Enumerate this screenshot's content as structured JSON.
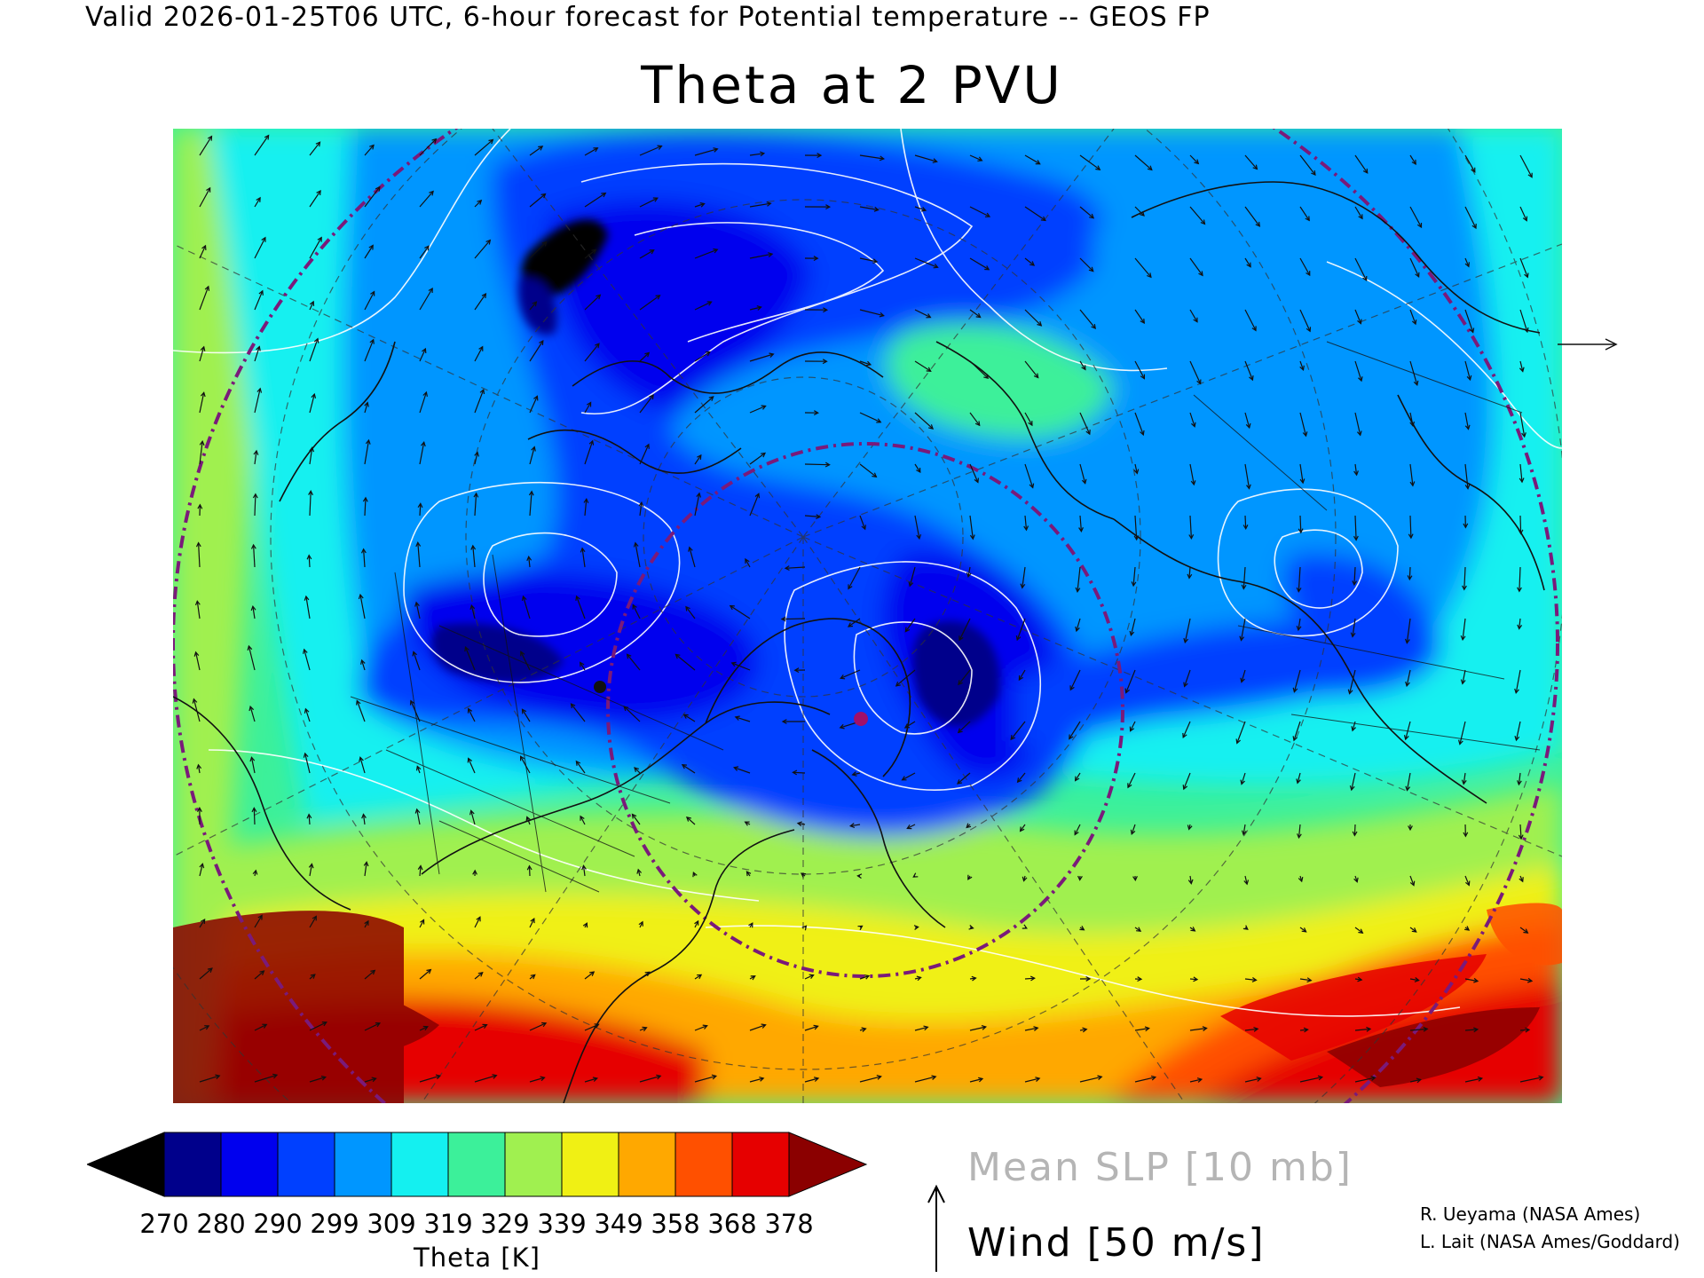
{
  "header": {
    "valid_text": "Valid 2026-01-25T06 UTC, 6-hour forecast for Potential temperature -- GEOS FP"
  },
  "title": "Theta at 2 PVU",
  "colorbar": {
    "label": "Theta [K]",
    "ticks": [
      "270",
      "280",
      "290",
      "299",
      "309",
      "319",
      "329",
      "339",
      "349",
      "358",
      "368",
      "378"
    ],
    "colors": [
      "#000000",
      "#00008b",
      "#0000ee",
      "#0040ff",
      "#0096ff",
      "#14f0f0",
      "#3cf09a",
      "#a0f050",
      "#f0f014",
      "#ffa800",
      "#ff5000",
      "#e60000",
      "#8b0000"
    ]
  },
  "legend": {
    "slp_label": "Mean SLP [10 mb]",
    "wind_label": "Wind [50 m/s]"
  },
  "credits": {
    "line1": "R. Ueyama (NASA Ames)",
    "line2": "L. Lait (NASA Ames/Goddard)"
  },
  "map": {
    "projection": "polar stereographic",
    "region": "Northern Hemisphere",
    "contour_color": "#ffffff",
    "coastline_color": "#111111",
    "ring_color": "#7a1a7a"
  }
}
